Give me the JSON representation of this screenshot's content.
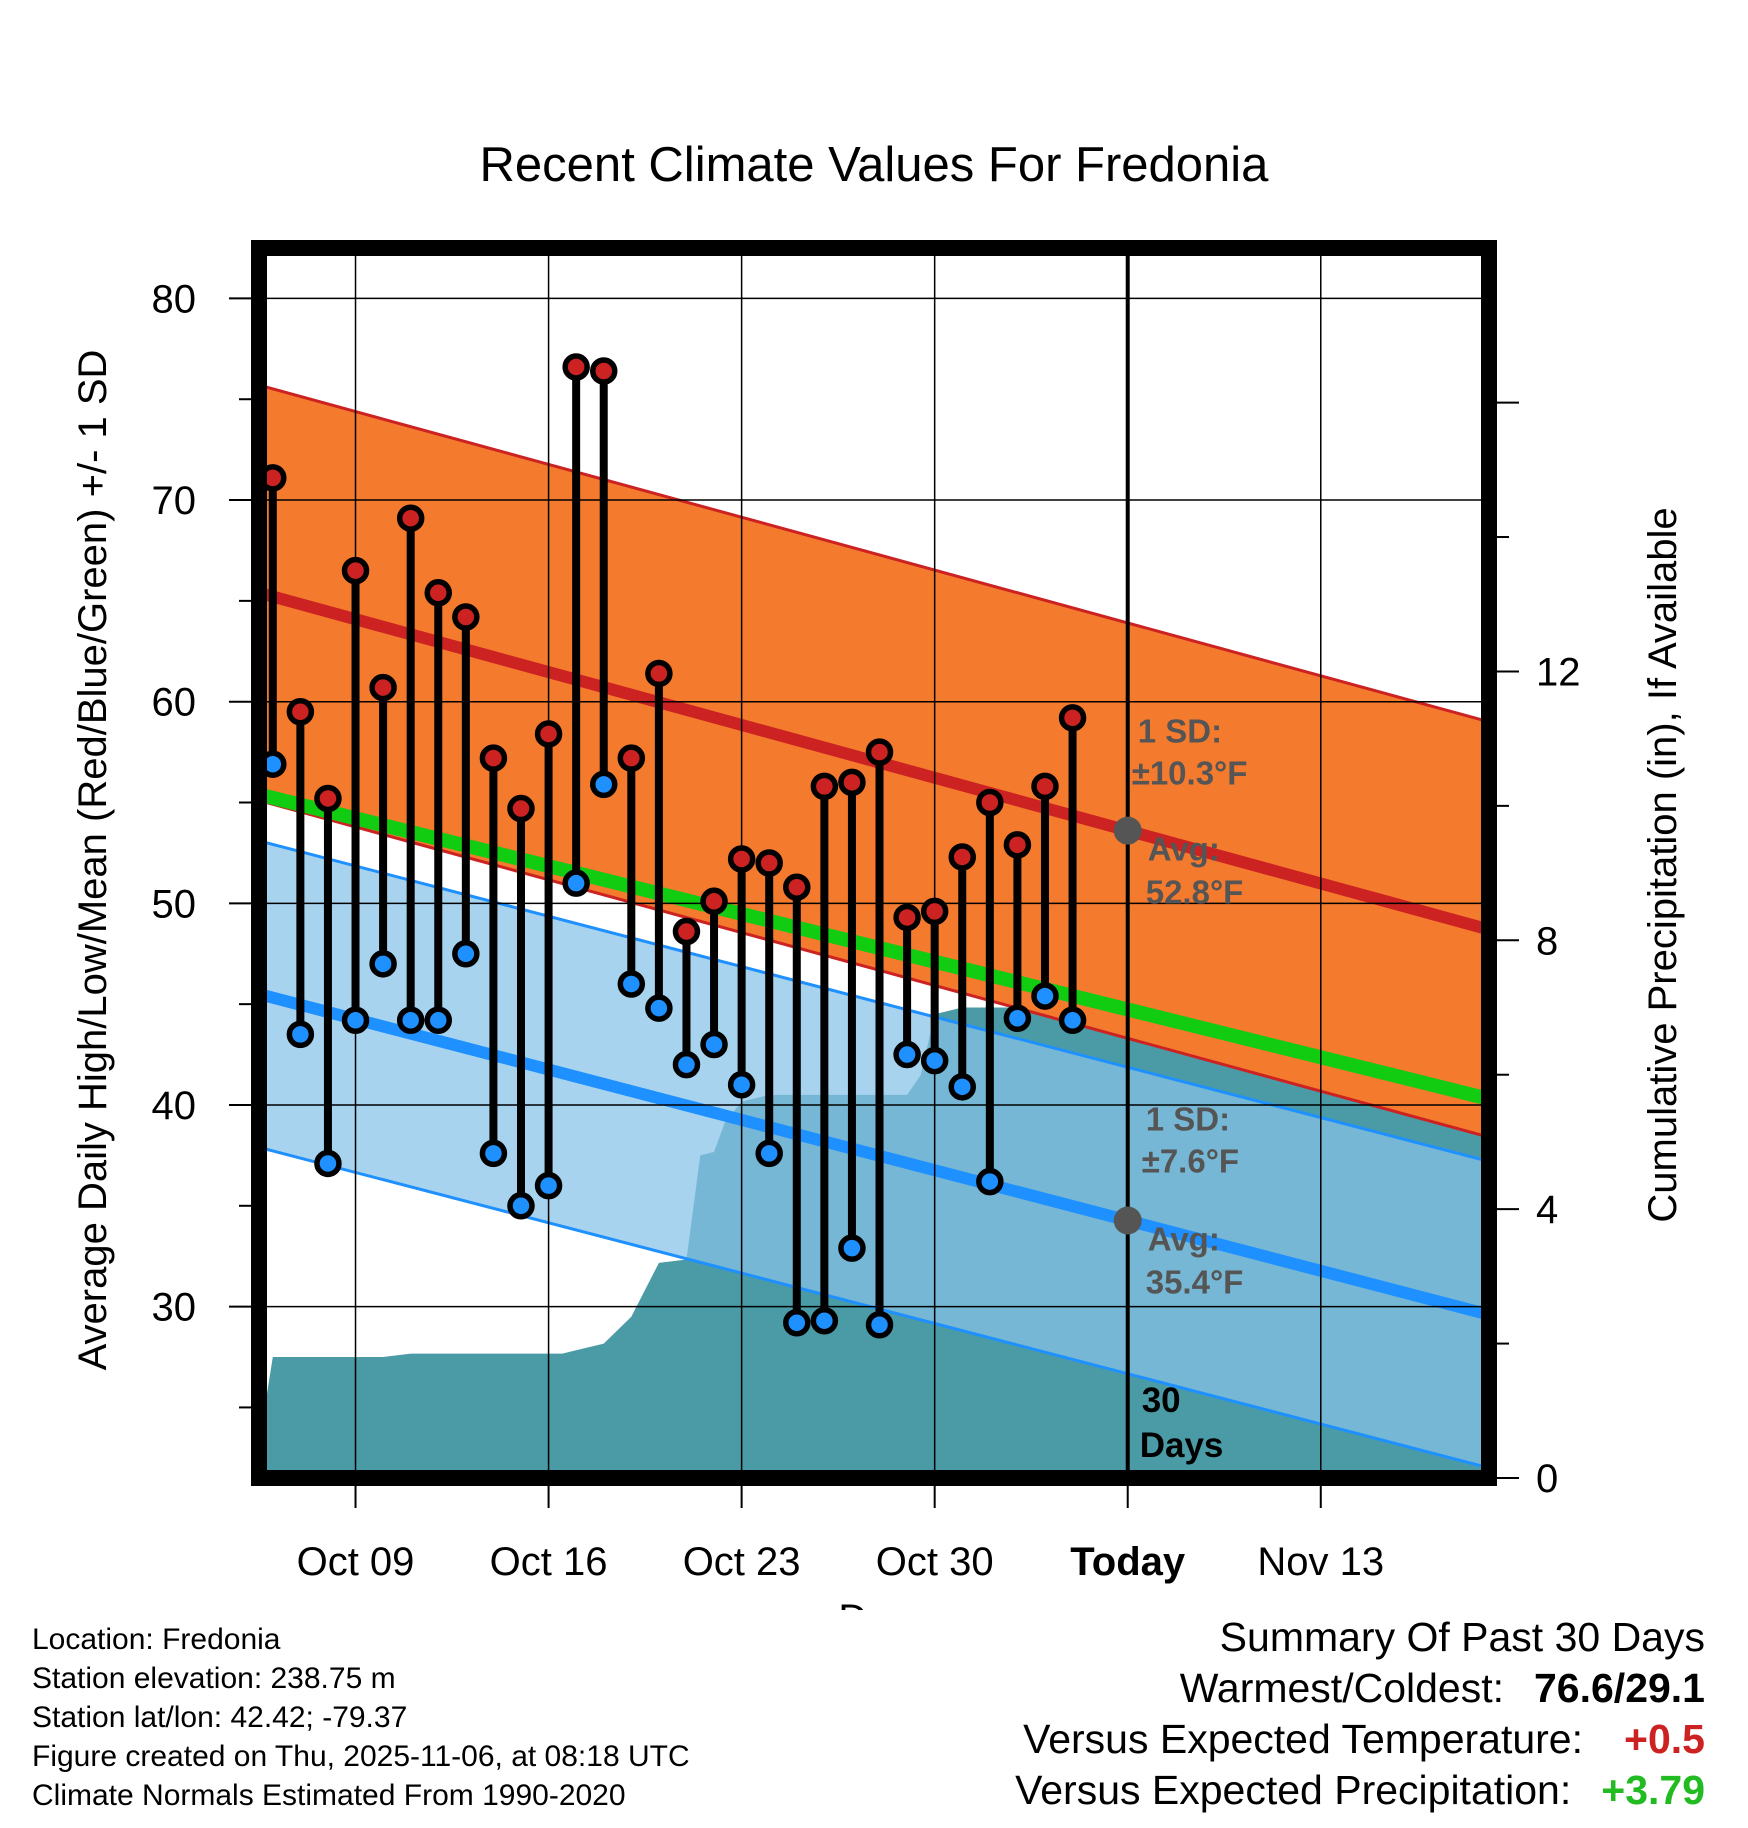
{
  "chart_data": {
    "type": "line",
    "title": "Recent Climate Values For Fredonia",
    "xlabel": "Day",
    "ylabel_left": "Average Daily High/Low/Mean (Red/Blue/Green) +/- 1 SD",
    "ylabel_right": "Cumulative Precipitation (in), If Available",
    "x_start_date": "2025-10-06",
    "x_range_days": [
      -0.5,
      44.1
    ],
    "today_day": 31,
    "ylim_left": [
      21.5,
      82.5
    ],
    "ylim_right": [
      0,
      18.3
    ],
    "y_ticks_left": [
      30,
      40,
      50,
      60,
      70,
      80
    ],
    "y_ticks_right": [
      0,
      4,
      8,
      12
    ],
    "x_ticks": [
      {
        "day": 3,
        "label": "Oct 09"
      },
      {
        "day": 10,
        "label": "Oct 16"
      },
      {
        "day": 17,
        "label": "Oct 23"
      },
      {
        "day": 24,
        "label": "Oct 30"
      },
      {
        "day": 31,
        "label": "Today"
      },
      {
        "day": 38,
        "label": "Nov 13"
      }
    ],
    "normal_high": {
      "start": 65.4,
      "end": 48.7,
      "sd": 10.3
    },
    "normal_low": {
      "start": 45.5,
      "end": 29.6,
      "sd": 7.6
    },
    "normal_mean": {
      "start": 55.4,
      "end": 40.3
    },
    "daily_high": [
      71.1,
      59.5,
      55.2,
      66.5,
      60.7,
      69.1,
      65.4,
      64.2,
      57.2,
      54.7,
      58.4,
      76.6,
      76.4,
      57.2,
      61.4,
      48.6,
      50.1,
      52.2,
      52.0,
      50.8,
      55.8,
      56.0,
      57.5,
      49.3,
      49.6,
      52.3,
      55.0,
      52.9,
      55.8,
      59.2
    ],
    "daily_low": [
      56.9,
      43.5,
      37.1,
      44.2,
      47.0,
      44.2,
      44.2,
      47.5,
      37.6,
      35.0,
      36.0,
      51.0,
      55.9,
      46.0,
      44.8,
      42.0,
      43.0,
      41.0,
      37.6,
      29.2,
      29.3,
      32.9,
      29.1,
      42.5,
      42.2,
      40.9,
      36.2,
      44.3,
      45.4,
      44.2
    ],
    "precip_cumulative": [
      [
        -0.5,
        0.5
      ],
      [
        0.0,
        1.8
      ],
      [
        4.0,
        1.8
      ],
      [
        5.0,
        1.85
      ],
      [
        10.5,
        1.85
      ],
      [
        11.0,
        1.9
      ],
      [
        12.0,
        2.0
      ],
      [
        13.0,
        2.4
      ],
      [
        14.0,
        3.2
      ],
      [
        15.0,
        3.25
      ],
      [
        15.5,
        4.8
      ],
      [
        16.0,
        4.85
      ],
      [
        16.4,
        5.3
      ],
      [
        17.0,
        5.6
      ],
      [
        18.0,
        5.7
      ],
      [
        23.0,
        5.7
      ],
      [
        23.5,
        6.0
      ],
      [
        24.0,
        6.9
      ],
      [
        25.0,
        7.0
      ],
      [
        28.0,
        7.0
      ],
      [
        29.0,
        7.05
      ],
      [
        30.0,
        7.3
      ],
      [
        44.1,
        7.3
      ]
    ],
    "annotations": {
      "high_sd": "1 SD:",
      "high_sd_value": "±10.3°F",
      "high_avg": "Avg:",
      "high_avg_value": "52.8°F",
      "low_sd": "1 SD:",
      "low_sd_value": "±7.6°F",
      "low_avg": "Avg:",
      "low_avg_value": "35.4°F",
      "period_count": "30",
      "period_unit": "Days"
    }
  },
  "colors": {
    "high_band": "#f47a2e",
    "high_line": "#cc2222",
    "low_band": "#87c2e8",
    "low_line": "#1e90ff",
    "mean_line": "#11cc11",
    "precip": "#4a9ba6",
    "deficit": "#9b1414",
    "high_dot": "#cc2222",
    "low_dot": "#1e90ff",
    "annotation": "#555555",
    "warm": "#cc2222",
    "wet": "#22bb22"
  },
  "footer": {
    "location": "Location: Fredonia",
    "elevation": "Station elevation: 238.75 m",
    "latlon": "Station lat/lon: 42.42; -79.37",
    "created": "Figure created on Thu, 2025-11-06, at 08:18 UTC",
    "normals": "Climate Normals Estimated From 1990-2020"
  },
  "summary": {
    "title": "Summary Of Past 30 Days",
    "warm_cold_label": "Warmest/Coldest:",
    "warm_cold_value": "76.6/29.1",
    "temp_label": "Versus Expected Temperature:",
    "temp_value": "+0.5",
    "precip_label": "Versus Expected Precipitation:",
    "precip_value": "+3.79"
  }
}
